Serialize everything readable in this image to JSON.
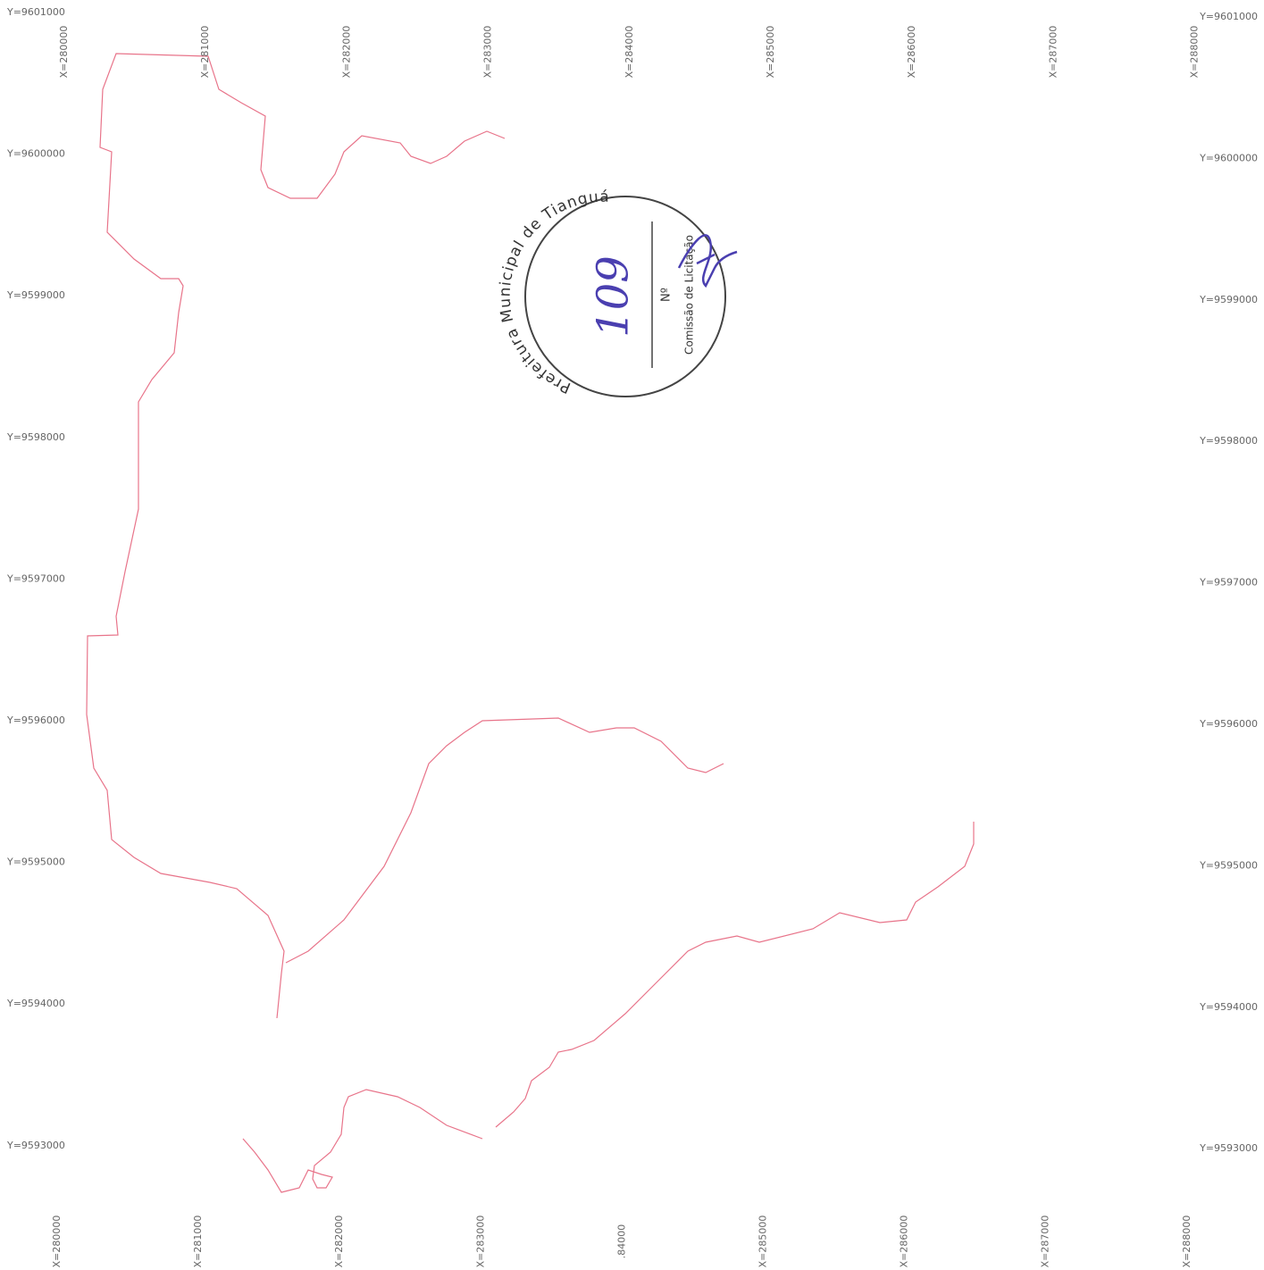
{
  "grid_labels": {
    "left": [
      "Y=9601000",
      "Y=9600000",
      "Y=9599000",
      "Y=9598000",
      "Y=9597000",
      "Y=9596000",
      "Y=9595000",
      "Y=9594000",
      "Y=9593000"
    ],
    "right": [
      "Y=9601000",
      "Y=9600000",
      "Y=9599000",
      "Y=9598000",
      "Y=9597000",
      "Y=9596000",
      "Y=9595000",
      "Y=9594000",
      "Y=9593000"
    ],
    "top": [
      "X=280000",
      "X=281000",
      "X=282000",
      "X=283000",
      "X=284000",
      "X=285000",
      "X=286000",
      "X=287000",
      "X=288000"
    ],
    "bottom": [
      "X=280000",
      "X=281000",
      "X=282000",
      "X=283000",
      ".84000",
      "X=285000",
      "X=286000",
      "X=287000",
      "X=288000"
    ]
  },
  "stamp": {
    "ring_text": "Prefeitura Municipal de Tianguá",
    "number_label": "Nº",
    "side_text": "Comissão de Licitação",
    "number": 109
  }
}
